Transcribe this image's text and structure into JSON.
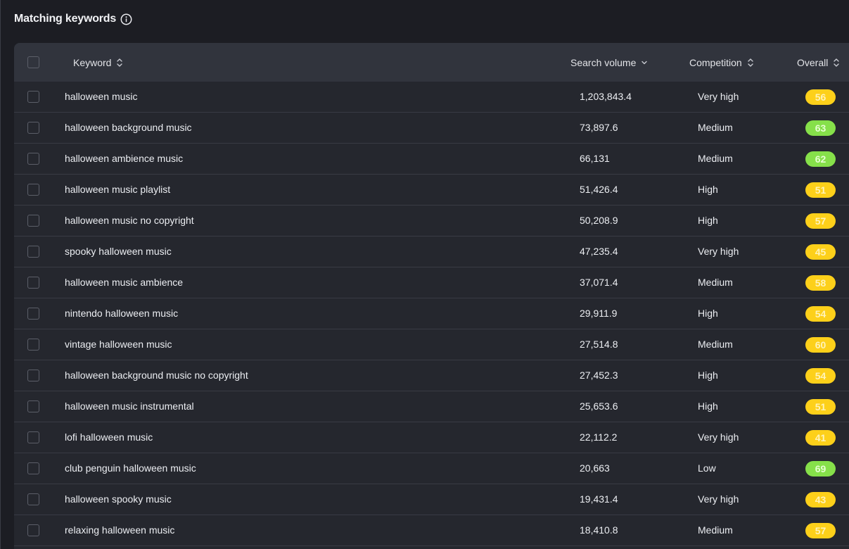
{
  "header": {
    "title": "Matching keywords",
    "info_icon": "info-circle-icon"
  },
  "table": {
    "columns": {
      "keyword": "Keyword",
      "search_volume": "Search volume",
      "competition": "Competition",
      "overall": "Overall"
    },
    "sort_state": {
      "keyword": "unsorted",
      "search_volume": "descending",
      "competition": "unsorted",
      "overall": "unsorted"
    },
    "score_colors": {
      "yellow": "#fdd01a",
      "green": "#86e04a"
    },
    "rows": [
      {
        "keyword": "halloween music",
        "volume": "1,203,843.4",
        "competition": "Very high",
        "overall": "56",
        "color": "yellow"
      },
      {
        "keyword": "halloween background music",
        "volume": "73,897.6",
        "competition": "Medium",
        "overall": "63",
        "color": "green"
      },
      {
        "keyword": "halloween ambience music",
        "volume": "66,131",
        "competition": "Medium",
        "overall": "62",
        "color": "green"
      },
      {
        "keyword": "halloween music playlist",
        "volume": "51,426.4",
        "competition": "High",
        "overall": "51",
        "color": "yellow"
      },
      {
        "keyword": "halloween music no copyright",
        "volume": "50,208.9",
        "competition": "High",
        "overall": "57",
        "color": "yellow"
      },
      {
        "keyword": "spooky halloween music",
        "volume": "47,235.4",
        "competition": "Very high",
        "overall": "45",
        "color": "yellow"
      },
      {
        "keyword": "halloween music ambience",
        "volume": "37,071.4",
        "competition": "Medium",
        "overall": "58",
        "color": "yellow"
      },
      {
        "keyword": "nintendo halloween music",
        "volume": "29,911.9",
        "competition": "High",
        "overall": "54",
        "color": "yellow"
      },
      {
        "keyword": "vintage halloween music",
        "volume": "27,514.8",
        "competition": "Medium",
        "overall": "60",
        "color": "yellow"
      },
      {
        "keyword": "halloween background music no copyright",
        "volume": "27,452.3",
        "competition": "High",
        "overall": "54",
        "color": "yellow"
      },
      {
        "keyword": "halloween music instrumental",
        "volume": "25,653.6",
        "competition": "High",
        "overall": "51",
        "color": "yellow"
      },
      {
        "keyword": "lofi halloween music",
        "volume": "22,112.2",
        "competition": "Very high",
        "overall": "41",
        "color": "yellow"
      },
      {
        "keyword": "club penguin halloween music",
        "volume": "20,663",
        "competition": "Low",
        "overall": "69",
        "color": "green"
      },
      {
        "keyword": "halloween spooky music",
        "volume": "19,431.4",
        "competition": "Very high",
        "overall": "43",
        "color": "yellow"
      },
      {
        "keyword": "relaxing halloween music",
        "volume": "18,410.8",
        "competition": "Medium",
        "overall": "57",
        "color": "yellow"
      }
    ]
  }
}
